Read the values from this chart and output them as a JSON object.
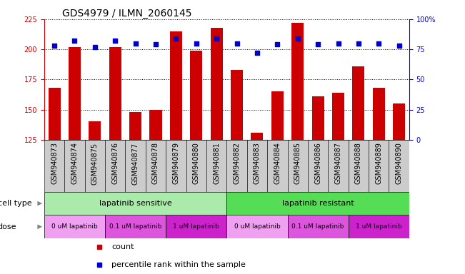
{
  "title": "GDS4979 / ILMN_2060145",
  "samples": [
    "GSM940873",
    "GSM940874",
    "GSM940875",
    "GSM940876",
    "GSM940877",
    "GSM940878",
    "GSM940879",
    "GSM940880",
    "GSM940881",
    "GSM940882",
    "GSM940883",
    "GSM940884",
    "GSM940885",
    "GSM940886",
    "GSM940887",
    "GSM940888",
    "GSM940889",
    "GSM940890"
  ],
  "counts": [
    168,
    202,
    140,
    202,
    148,
    150,
    215,
    199,
    218,
    183,
    131,
    165,
    222,
    161,
    164,
    186,
    168,
    155
  ],
  "percentiles": [
    78,
    82,
    77,
    82,
    80,
    79,
    84,
    80,
    84,
    80,
    72,
    79,
    84,
    79,
    80,
    80,
    80,
    78
  ],
  "ylim_left": [
    125,
    225
  ],
  "ylim_right": [
    0,
    100
  ],
  "yticks_left": [
    125,
    150,
    175,
    200,
    225
  ],
  "yticks_right": [
    0,
    25,
    50,
    75,
    100
  ],
  "bar_color": "#cc0000",
  "dot_color": "#0000cc",
  "cell_type_sensitive": "lapatinib sensitive",
  "cell_type_resistant": "lapatinib resistant",
  "cell_type_sensitive_color": "#aaeaaa",
  "cell_type_resistant_color": "#55dd55",
  "dose_labels": [
    "0 uM lapatinib",
    "0.1 uM lapatinib",
    "1 uM lapatinib",
    "0 uM lapatinib",
    "0.1 uM lapatinib",
    "1 uM lapatinib"
  ],
  "dose_colors": [
    "#f0a0f0",
    "#dd55dd",
    "#cc22cc",
    "#f0a0f0",
    "#dd55dd",
    "#cc22cc"
  ],
  "xtick_bg": "#cccccc",
  "legend_count_color": "#cc0000",
  "legend_dot_color": "#0000cc",
  "grid_color": "#000000",
  "title_fontsize": 10,
  "tick_fontsize": 7,
  "label_fontsize": 8,
  "annot_label_fontsize": 8
}
